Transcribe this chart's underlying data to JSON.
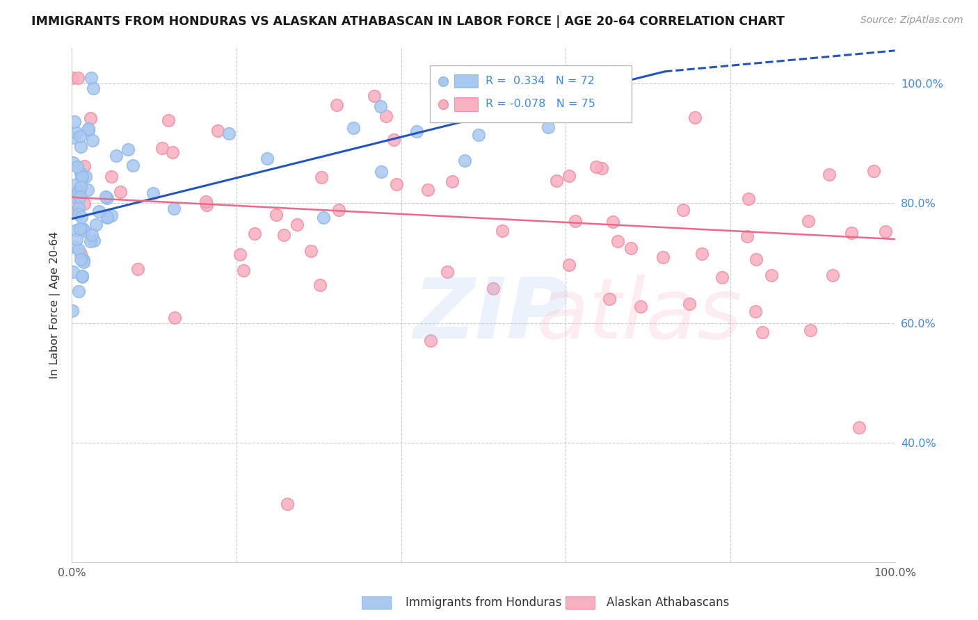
{
  "title": "IMMIGRANTS FROM HONDURAS VS ALASKAN ATHABASCAN IN LABOR FORCE | AGE 20-64 CORRELATION CHART",
  "source": "Source: ZipAtlas.com",
  "ylabel": "In Labor Force | Age 20-64",
  "xlim": [
    0.0,
    1.0
  ],
  "ylim": [
    0.2,
    1.06
  ],
  "ytick_vals": [
    0.4,
    0.6,
    0.8,
    1.0
  ],
  "ytick_labels": [
    "40.0%",
    "60.0%",
    "80.0%",
    "100.0%"
  ],
  "xtick_vals": [
    0.0,
    0.2,
    0.4,
    0.6,
    0.8,
    1.0
  ],
  "xtick_labels": [
    "0.0%",
    "",
    "",
    "",
    "",
    "100.0%"
  ],
  "blue_R": 0.334,
  "blue_N": 72,
  "pink_R": -0.078,
  "pink_N": 75,
  "blue_color": "#A8C8F0",
  "pink_color": "#F8B0C0",
  "blue_edge_color": "#90B8E8",
  "pink_edge_color": "#F090A8",
  "blue_line_color": "#2255BB",
  "pink_line_color": "#EE6688",
  "legend_label_blue": "Immigrants from Honduras",
  "legend_label_pink": "Alaskan Athabascans",
  "right_tick_color": "#4488DD",
  "grid_color": "#CCCCCC",
  "blue_line_x": [
    0.0,
    0.72
  ],
  "blue_line_y": [
    0.774,
    1.02
  ],
  "pink_line_x": [
    0.0,
    1.0
  ],
  "pink_line_y": [
    0.81,
    0.74
  ]
}
